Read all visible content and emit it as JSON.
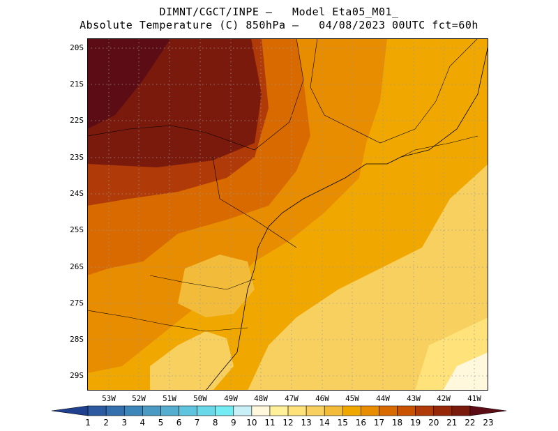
{
  "header": {
    "line1": "DIMNT/CGCT/INPE –   Model Eta05_M01_",
    "line2": "Absolute Temperature (C) 850hPa –   04/08/2023 00UTC fct=60h"
  },
  "map": {
    "lat_labels": [
      "20S",
      "21S",
      "22S",
      "23S",
      "24S",
      "25S",
      "26S",
      "27S",
      "28S",
      "29S"
    ],
    "lon_labels": [
      "53W",
      "52W",
      "51W",
      "50W",
      "49W",
      "48W",
      "47W",
      "46W",
      "45W",
      "44W",
      "43W",
      "42W",
      "41W"
    ]
  },
  "colorbar": {
    "labels": [
      "1",
      "2",
      "3",
      "4",
      "5",
      "6",
      "7",
      "8",
      "9",
      "10",
      "11",
      "12",
      "13",
      "14",
      "15",
      "16",
      "17",
      "18",
      "19",
      "20",
      "21",
      "22",
      "23"
    ],
    "colors": [
      "#1f3f8f",
      "#2b5aa0",
      "#3470ad",
      "#3d86ba",
      "#4a9ac4",
      "#55aed0",
      "#5fc4dd",
      "#69d8e8",
      "#74ecf3",
      "#c8f0f6",
      "#fff8dc",
      "#fff09a",
      "#ffe27a",
      "#f8d060",
      "#f2bc3a",
      "#f0a800",
      "#e88c00",
      "#d86a00",
      "#c85200",
      "#b03a08",
      "#962808",
      "#7a1a0c",
      "#5c0c14"
    ]
  }
}
